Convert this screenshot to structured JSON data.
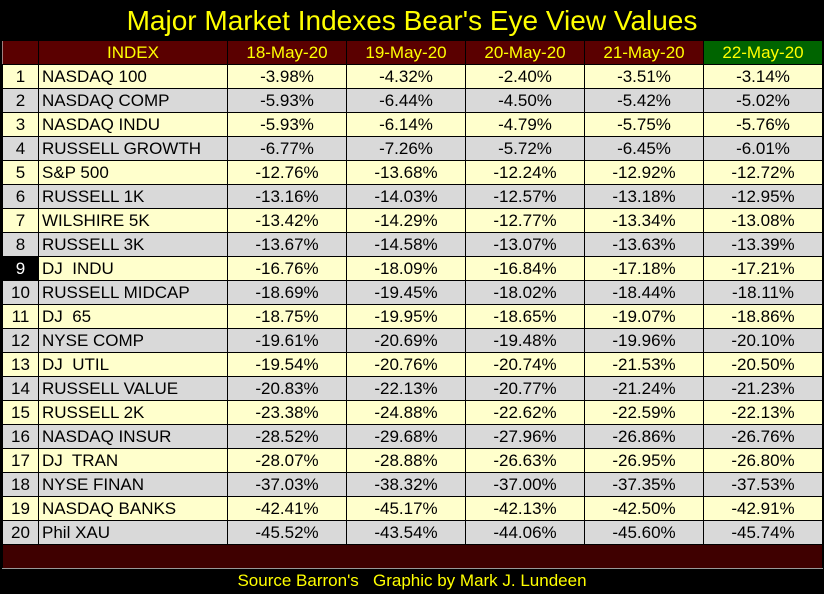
{
  "title": "Major Market Indexes Bear's Eye View Values",
  "colors": {
    "header_bg": "#5a0000",
    "current_header_bg": "#006400",
    "header_text": "#ffff00",
    "row_odd": "#ffffcc",
    "row_even": "#d9d9d9",
    "highlight_cell": "#000000"
  },
  "table": {
    "headers": [
      "",
      "INDEX",
      "18-May-20",
      "19-May-20",
      "20-May-20",
      "21-May-20",
      "22-May-20"
    ],
    "highlight_row_number": "9",
    "rows": [
      [
        "1",
        "NASDAQ 100",
        "-3.98%",
        "-4.32%",
        "-2.40%",
        "-3.51%",
        "-3.14%"
      ],
      [
        "2",
        "NASDAQ COMP",
        "-5.93%",
        "-6.44%",
        "-4.50%",
        "-5.42%",
        "-5.02%"
      ],
      [
        "3",
        "NASDAQ INDU",
        "-5.93%",
        "-6.14%",
        "-4.79%",
        "-5.75%",
        "-5.76%"
      ],
      [
        "4",
        "RUSSELL GROWTH",
        "-6.77%",
        "-7.26%",
        "-5.72%",
        "-6.45%",
        "-6.01%"
      ],
      [
        "5",
        "S&P 500",
        "-12.76%",
        "-13.68%",
        "-12.24%",
        "-12.92%",
        "-12.72%"
      ],
      [
        "6",
        "RUSSELL 1K",
        "-13.16%",
        "-14.03%",
        "-12.57%",
        "-13.18%",
        "-12.95%"
      ],
      [
        "7",
        "WILSHIRE 5K",
        "-13.42%",
        "-14.29%",
        "-12.77%",
        "-13.34%",
        "-13.08%"
      ],
      [
        "8",
        "RUSSELL 3K",
        "-13.67%",
        "-14.58%",
        "-13.07%",
        "-13.63%",
        "-13.39%"
      ],
      [
        "9",
        "DJ  INDU",
        "-16.76%",
        "-18.09%",
        "-16.84%",
        "-17.18%",
        "-17.21%"
      ],
      [
        "10",
        "RUSSELL MIDCAP",
        "-18.69%",
        "-19.45%",
        "-18.02%",
        "-18.44%",
        "-18.11%"
      ],
      [
        "11",
        "DJ  65",
        "-18.75%",
        "-19.95%",
        "-18.65%",
        "-19.07%",
        "-18.86%"
      ],
      [
        "12",
        "NYSE COMP",
        "-19.61%",
        "-20.69%",
        "-19.48%",
        "-19.96%",
        "-20.10%"
      ],
      [
        "13",
        "DJ  UTIL",
        "-19.54%",
        "-20.76%",
        "-20.74%",
        "-21.53%",
        "-20.50%"
      ],
      [
        "14",
        "RUSSELL VALUE",
        "-20.83%",
        "-22.13%",
        "-20.77%",
        "-21.24%",
        "-21.23%"
      ],
      [
        "15",
        "RUSSELL 2K",
        "-23.38%",
        "-24.88%",
        "-22.62%",
        "-22.59%",
        "-22.13%"
      ],
      [
        "16",
        "NASDAQ INSUR",
        "-28.52%",
        "-29.68%",
        "-27.96%",
        "-26.86%",
        "-26.76%"
      ],
      [
        "17",
        "DJ  TRAN",
        "-28.07%",
        "-28.88%",
        "-26.63%",
        "-26.95%",
        "-26.80%"
      ],
      [
        "18",
        "NYSE FINAN",
        "-37.03%",
        "-38.32%",
        "-37.00%",
        "-37.35%",
        "-37.53%"
      ],
      [
        "19",
        "NASDAQ BANKS",
        "-42.41%",
        "-45.17%",
        "-42.13%",
        "-42.50%",
        "-42.91%"
      ],
      [
        "20",
        "Phil XAU",
        "-45.52%",
        "-43.54%",
        "-44.06%",
        "-45.60%",
        "-45.74%"
      ]
    ]
  },
  "footer": "Source Barron's   Graphic by Mark J. Lundeen"
}
